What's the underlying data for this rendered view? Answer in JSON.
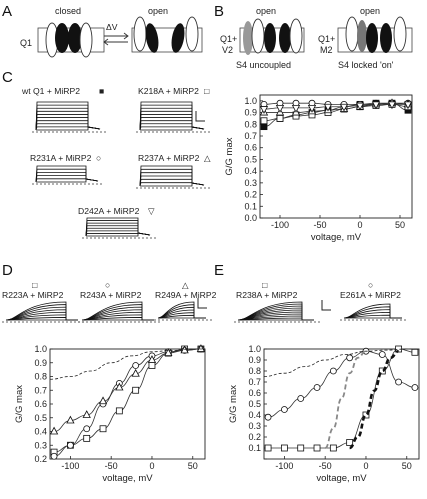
{
  "panel_labels": [
    "A",
    "B",
    "C",
    "D",
    "E"
  ],
  "panelA": {
    "channel_label": "Q1",
    "closed_label": "closed",
    "open_label": "open",
    "transition_label": "ΔV"
  },
  "panelB": {
    "left": {
      "top_label": "open",
      "channel_label": "Q1+",
      "subunit_label": "V2",
      "caption": "S4 uncoupled"
    },
    "right": {
      "top_label": "open",
      "channel_label": "Q1+",
      "subunit_label": "M2",
      "caption": "S4 locked 'on'"
    }
  },
  "panelC": {
    "trace_labels": [
      "wt Q1 + MiRP2",
      "K218A + MiRP2",
      "R231A + MiRP2",
      "R237A + MiRP2",
      "D242A + MiRP2"
    ],
    "trace_symbols": [
      "■",
      "□",
      "○",
      "△",
      "▽"
    ]
  },
  "panelD": {
    "trace_labels": [
      "R223A + MiRP2",
      "R243A + MiRP2",
      "R249A + MiRP2"
    ],
    "trace_symbols": [
      "□",
      "○",
      "△"
    ]
  },
  "panelE": {
    "trace_labels": [
      "R238A + MiRP2",
      "E261A + MiRP2"
    ],
    "trace_symbols": [
      "□",
      "○"
    ]
  },
  "chart_data": [
    {
      "panel": "C",
      "type": "line",
      "ylabel": "G/G max",
      "xlabel": "voltage, mV",
      "xlim": [
        -125,
        65
      ],
      "ylim": [
        0,
        1.05
      ],
      "xticks": [
        -100,
        -50,
        0,
        50
      ],
      "yticks": [
        0.0,
        0.1,
        0.2,
        0.3,
        0.4,
        0.5,
        0.6,
        0.7,
        0.8,
        0.9,
        1.0
      ],
      "ytick_labels": [
        "0.0",
        "0.1",
        "0.2",
        "0.3",
        "0.4",
        "0.5",
        "0.6",
        "0.7",
        "0.8",
        "0.9",
        "1.0"
      ],
      "series": [
        {
          "marker": "filled-square",
          "x": [
            -120,
            -100,
            -80,
            -60,
            -40,
            -20,
            0,
            20,
            40,
            60
          ],
          "y": [
            0.78,
            0.85,
            0.88,
            0.9,
            0.92,
            0.95,
            0.97,
            0.98,
            0.98,
            0.92
          ]
        },
        {
          "marker": "open-square",
          "x": [
            -120,
            -100,
            -80,
            -60,
            -40,
            -20,
            0,
            20,
            40,
            60
          ],
          "y": [
            0.83,
            0.85,
            0.87,
            0.88,
            0.9,
            0.93,
            0.95,
            0.96,
            0.97,
            0.95
          ]
        },
        {
          "marker": "open-circle",
          "x": [
            -120,
            -100,
            -80,
            -60,
            -40,
            -20,
            0,
            20,
            40,
            60
          ],
          "y": [
            0.97,
            0.98,
            0.98,
            0.98,
            0.97,
            0.97,
            0.97,
            0.97,
            0.98,
            0.98
          ]
        },
        {
          "marker": "open-triangle",
          "x": [
            -120,
            -100,
            -80,
            -60,
            -40,
            -20,
            0,
            20,
            40,
            60
          ],
          "y": [
            0.9,
            0.9,
            0.9,
            0.91,
            0.92,
            0.93,
            0.95,
            0.97,
            0.98,
            0.97
          ]
        },
        {
          "marker": "open-triangle-down",
          "x": [
            -120,
            -100,
            -80,
            -60,
            -40,
            -20,
            0,
            20,
            40,
            60
          ],
          "y": [
            0.93,
            0.94,
            0.94,
            0.94,
            0.95,
            0.95,
            0.96,
            0.97,
            0.97,
            0.97
          ]
        }
      ]
    },
    {
      "panel": "D",
      "type": "line",
      "ylabel": "G/G max",
      "xlabel": "voltage, mV",
      "xlim": [
        -125,
        65
      ],
      "ylim": [
        0.2,
        1.0
      ],
      "xticks": [
        -100,
        -50,
        0,
        50
      ],
      "yticks": [
        0.2,
        0.3,
        0.4,
        0.5,
        0.6,
        0.7,
        0.8,
        0.9,
        1.0
      ],
      "ytick_labels": [
        "0.2",
        "0.3",
        "0.4",
        "0.5",
        "0.6",
        "0.7",
        "0.8",
        "0.9",
        "1.0"
      ],
      "series": [
        {
          "marker": "open-square",
          "x": [
            -120,
            -100,
            -80,
            -60,
            -40,
            -20,
            0,
            20,
            40,
            60
          ],
          "y": [
            0.25,
            0.3,
            0.35,
            0.42,
            0.55,
            0.7,
            0.88,
            0.97,
            1.0,
            1.0
          ]
        },
        {
          "marker": "open-circle",
          "x": [
            -120,
            -100,
            -80,
            -60,
            -40,
            -20,
            0,
            20,
            40,
            60
          ],
          "y": [
            0.22,
            0.3,
            0.42,
            0.6,
            0.75,
            0.88,
            0.95,
            0.98,
            0.99,
            1.0
          ]
        },
        {
          "marker": "open-triangle",
          "x": [
            -120,
            -100,
            -80,
            -60,
            -40,
            -20,
            0,
            20,
            40,
            60
          ],
          "y": [
            0.4,
            0.48,
            0.52,
            0.62,
            0.72,
            0.82,
            0.92,
            0.97,
            0.99,
            1.0
          ]
        },
        {
          "style": "dashed",
          "x": [
            -125,
            -100,
            -75,
            -50,
            -25,
            0,
            25,
            50,
            65
          ],
          "y": [
            0.78,
            0.8,
            0.84,
            0.9,
            0.95,
            0.98,
            0.99,
            1.0,
            1.0
          ]
        }
      ]
    },
    {
      "panel": "E",
      "type": "line",
      "ylabel": "G/G max",
      "xlabel": "voltage, mV",
      "xlim": [
        -125,
        65
      ],
      "ylim": [
        0,
        1.0
      ],
      "xticks": [
        -100,
        -50,
        0,
        50
      ],
      "yticks": [
        0.0,
        0.1,
        0.2,
        0.3,
        0.4,
        0.5,
        0.6,
        0.7,
        0.8,
        0.9,
        1.0
      ],
      "ytick_labels": [
        "",
        "0.1",
        "0.2",
        "0.3",
        "0.4",
        "0.5",
        "0.6",
        "0.7",
        "0.8",
        "0.9",
        "1.0"
      ],
      "series": [
        {
          "marker": "open-square",
          "x": [
            -120,
            -100,
            -80,
            -60,
            -40,
            -20,
            0,
            20,
            40,
            60
          ],
          "y": [
            0.1,
            0.1,
            0.1,
            0.1,
            0.1,
            0.15,
            0.4,
            0.8,
            1.0,
            0.97
          ]
        },
        {
          "marker": "open-circle",
          "x": [
            -120,
            -100,
            -80,
            -60,
            -40,
            -20,
            0,
            20,
            40,
            60
          ],
          "y": [
            0.38,
            0.45,
            0.55,
            0.65,
            0.8,
            0.92,
            0.98,
            0.95,
            0.7,
            0.65
          ]
        },
        {
          "style": "dashed",
          "x": [
            -125,
            -100,
            -75,
            -50,
            -25,
            0,
            25,
            50,
            65
          ],
          "y": [
            0.75,
            0.78,
            0.84,
            0.9,
            0.95,
            0.98,
            0.99,
            1.0,
            1.0
          ]
        },
        {
          "style": "thick-dashed",
          "x": [
            -20,
            -10,
            0,
            10,
            20,
            30,
            40
          ],
          "y": [
            0.1,
            0.2,
            0.4,
            0.62,
            0.8,
            0.92,
            0.98
          ]
        },
        {
          "style": "gray-dashed",
          "x": [
            -50,
            -40,
            -30,
            -20,
            -10,
            0
          ],
          "y": [
            0.1,
            0.28,
            0.55,
            0.78,
            0.92,
            0.98
          ]
        }
      ]
    }
  ]
}
